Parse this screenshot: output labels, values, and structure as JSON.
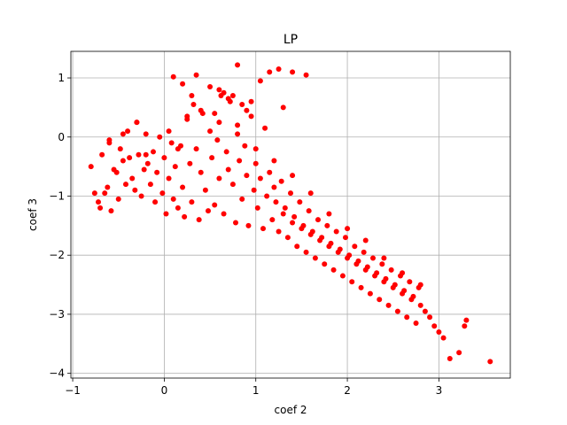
{
  "chart_data": {
    "type": "scatter",
    "title": "LP",
    "xlabel": "coef 2",
    "ylabel": "coef 3",
    "xlim": [
      -1.02,
      3.78
    ],
    "ylim": [
      -4.08,
      1.45
    ],
    "xticks": [
      -1,
      0,
      1,
      2,
      3
    ],
    "yticks": [
      -4,
      -3,
      -2,
      -1,
      0,
      1
    ],
    "xtick_labels": [
      "−1",
      "0",
      "1",
      "2",
      "3"
    ],
    "ytick_labels": [
      "−4",
      "−3",
      "−2",
      "−1",
      "0",
      "1"
    ],
    "grid": true,
    "marker_color": "#ff0000",
    "series": [
      {
        "x": [
          -0.8,
          -0.76,
          -0.72,
          -0.7,
          -0.68,
          -0.65,
          -0.62,
          -0.6,
          -0.58,
          -0.55,
          -0.52,
          -0.5,
          -0.48,
          -0.45,
          -0.42,
          -0.4,
          -0.38,
          -0.35,
          -0.32,
          -0.3,
          -0.28,
          -0.25,
          -0.22,
          -0.2,
          -0.18,
          -0.15,
          -0.12,
          -0.1,
          -0.08,
          -0.05,
          -0.02,
          0.0,
          0.02,
          0.05,
          0.08,
          0.1,
          0.12,
          0.15,
          0.18,
          0.2,
          0.22,
          0.25,
          0.28,
          0.3,
          0.32,
          0.35,
          0.38,
          0.4,
          0.42,
          0.45,
          0.48,
          0.5,
          0.52,
          0.55,
          0.58,
          0.6,
          0.62,
          0.65,
          0.68,
          0.7,
          0.72,
          0.75,
          0.78,
          0.8,
          0.82,
          0.85,
          0.88,
          0.9,
          0.92,
          0.95,
          0.98,
          1.0,
          1.02,
          1.05,
          1.08,
          1.1,
          1.12,
          1.15,
          1.18,
          1.2,
          1.22,
          1.25,
          1.28,
          1.3,
          1.32,
          1.35,
          1.38,
          1.4,
          1.42,
          1.45,
          1.48,
          1.5,
          1.52,
          1.55,
          1.58,
          1.6,
          1.62,
          1.65,
          1.68,
          1.7,
          1.72,
          1.75,
          1.78,
          1.8,
          1.82,
          1.85,
          1.88,
          1.9,
          1.92,
          1.95,
          1.98,
          2.0,
          2.02,
          2.05,
          2.08,
          2.1,
          2.12,
          2.15,
          2.18,
          2.2,
          2.22,
          2.25,
          2.28,
          2.3,
          2.32,
          2.35,
          2.38,
          2.4,
          2.42,
          2.45,
          2.48,
          2.5,
          2.52,
          2.55,
          2.58,
          2.6,
          2.62,
          2.65,
          2.68,
          2.7,
          2.72,
          2.75,
          2.78,
          2.8,
          2.85,
          2.9,
          2.95,
          3.0,
          3.05,
          3.12,
          3.22,
          3.28,
          3.3,
          3.56,
          0.1,
          0.2,
          0.35,
          0.5,
          0.6,
          0.65,
          0.7,
          0.75,
          0.85,
          0.95,
          1.05,
          1.15,
          1.25,
          1.3,
          1.4,
          1.55,
          0.8,
          0.3,
          0.55,
          0.9,
          -0.6,
          -0.45,
          -0.3,
          -0.2,
          0.05,
          0.15,
          0.25,
          0.4,
          0.6,
          0.8,
          1.0,
          1.2,
          1.4,
          1.6,
          1.8,
          2.0,
          2.2,
          2.4,
          2.6,
          2.8
        ],
        "y": [
          -0.5,
          -0.95,
          -1.1,
          -1.2,
          -0.3,
          -0.95,
          -0.85,
          -0.05,
          -1.25,
          -0.55,
          -0.6,
          -1.05,
          -0.2,
          -0.4,
          -0.8,
          0.1,
          -0.35,
          -0.7,
          -0.9,
          0.25,
          -0.3,
          -1.0,
          -0.55,
          0.05,
          -0.45,
          -0.8,
          -0.25,
          -1.1,
          -0.6,
          0.0,
          -0.95,
          -0.35,
          -1.3,
          -0.7,
          -0.1,
          -1.05,
          -0.5,
          -1.2,
          -0.15,
          -0.85,
          -1.35,
          0.3,
          -0.45,
          -1.1,
          0.55,
          -0.2,
          -1.4,
          -0.6,
          0.4,
          -0.9,
          -1.25,
          0.1,
          -0.35,
          -1.15,
          -0.05,
          -0.7,
          0.7,
          -1.3,
          -0.25,
          -0.55,
          0.6,
          -0.8,
          -1.45,
          0.2,
          -0.4,
          -1.05,
          -0.15,
          -0.65,
          -1.5,
          0.35,
          -0.9,
          -0.45,
          -1.2,
          -0.7,
          -1.55,
          0.15,
          -1.0,
          -0.6,
          -1.4,
          -0.85,
          -1.1,
          -1.6,
          -0.75,
          -1.3,
          -1.2,
          -1.7,
          -0.95,
          -1.45,
          -1.35,
          -1.85,
          -1.1,
          -1.55,
          -1.5,
          -1.95,
          -1.25,
          -1.65,
          -1.6,
          -2.05,
          -1.4,
          -1.75,
          -1.7,
          -2.15,
          -1.5,
          -1.85,
          -1.8,
          -2.25,
          -1.6,
          -1.95,
          -1.9,
          -2.35,
          -1.7,
          -2.05,
          -2.0,
          -2.45,
          -1.85,
          -2.15,
          -2.1,
          -2.55,
          -1.95,
          -2.25,
          -2.2,
          -2.65,
          -2.05,
          -2.35,
          -2.3,
          -2.75,
          -2.15,
          -2.45,
          -2.4,
          -2.85,
          -2.25,
          -2.55,
          -2.5,
          -2.95,
          -2.35,
          -2.65,
          -2.6,
          -3.05,
          -2.45,
          -2.75,
          -2.7,
          -3.15,
          -2.55,
          -2.85,
          -2.95,
          -3.05,
          -3.2,
          -3.3,
          -3.4,
          -3.75,
          -3.65,
          -3.2,
          -3.1,
          -3.8,
          1.02,
          0.9,
          1.05,
          0.85,
          0.8,
          0.75,
          0.65,
          0.7,
          0.55,
          0.6,
          0.95,
          1.1,
          1.15,
          0.5,
          1.1,
          1.05,
          1.22,
          0.7,
          0.4,
          0.45,
          -0.1,
          0.05,
          0.25,
          -0.3,
          0.1,
          -0.2,
          0.35,
          0.45,
          0.25,
          0.05,
          -0.2,
          -0.4,
          -0.65,
          -0.95,
          -1.3,
          -1.55,
          -1.75,
          -2.05,
          -2.3,
          -2.5
        ]
      }
    ]
  }
}
